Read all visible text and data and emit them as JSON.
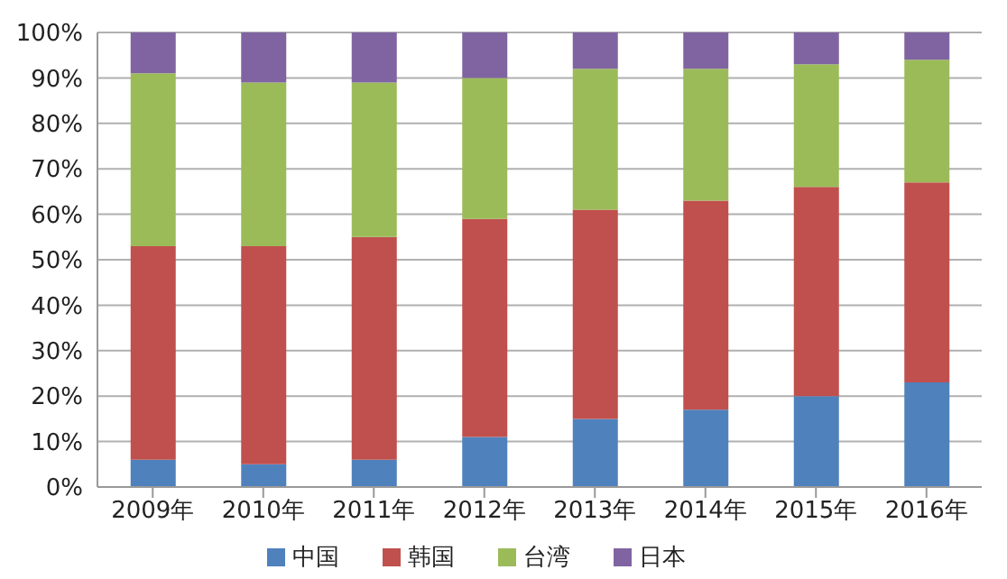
{
  "chart_data": {
    "type": "bar",
    "stacked": true,
    "categories": [
      "2009年",
      "2010年",
      "2011年",
      "2012年",
      "2013年",
      "2014年",
      "2015年",
      "2016年"
    ],
    "series": [
      {
        "name": "中国",
        "color": "#4f81bd",
        "values": [
          6,
          5,
          6,
          11,
          15,
          17,
          20,
          23
        ]
      },
      {
        "name": "韩国",
        "color": "#c0504d",
        "values": [
          47,
          48,
          49,
          48,
          46,
          46,
          46,
          44
        ]
      },
      {
        "name": "台湾",
        "color": "#9bbb59",
        "values": [
          38,
          36,
          34,
          31,
          31,
          29,
          27,
          27
        ]
      },
      {
        "name": "日本",
        "color": "#8064a2",
        "values": [
          9,
          11,
          11,
          10,
          8,
          8,
          7,
          6
        ]
      }
    ],
    "ylim": [
      0,
      100
    ],
    "yticks": [
      {
        "value": 0,
        "label": "0%"
      },
      {
        "value": 10,
        "label": "10%"
      },
      {
        "value": 20,
        "label": "20%"
      },
      {
        "value": 30,
        "label": "30%"
      },
      {
        "value": 40,
        "label": "40%"
      },
      {
        "value": 50,
        "label": "50%"
      },
      {
        "value": 60,
        "label": "60%"
      },
      {
        "value": 70,
        "label": "70%"
      },
      {
        "value": 80,
        "label": "80%"
      },
      {
        "value": 90,
        "label": "90%"
      },
      {
        "value": 100,
        "label": "100%"
      }
    ],
    "grid": "y",
    "legend": "bottom"
  }
}
